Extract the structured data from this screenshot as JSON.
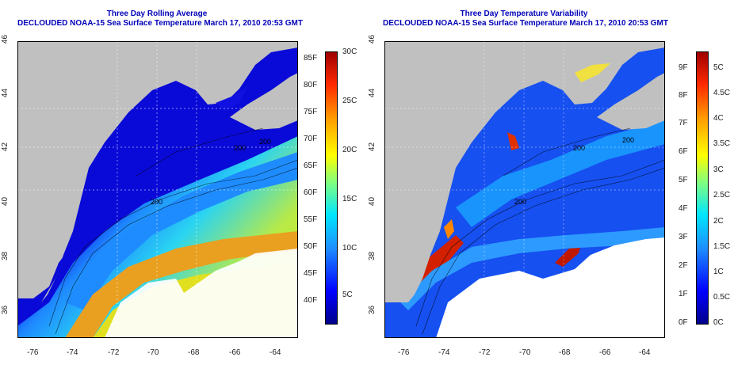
{
  "panels": [
    {
      "title": "Three Day Rolling Average",
      "subtitle": "DECLOUDED NOAA-15 Sea Surface Temperature March 17, 2010 20:53 GMT",
      "x_ticks": [
        "-76",
        "-74",
        "-72",
        "-70",
        "-68",
        "-66",
        "-64"
      ],
      "y_ticks": [
        "36",
        "38",
        "40",
        "42",
        "44",
        "46"
      ],
      "contour_labels": [
        "200",
        "200",
        "200"
      ],
      "colorbar": {
        "f_labels": [
          "85F",
          "80F",
          "75F",
          "70F",
          "65F",
          "60F",
          "55F",
          "50F",
          "45F",
          "40F"
        ],
        "c_labels": [
          "30C",
          "25C",
          "20C",
          "15C",
          "10C",
          "5C"
        ],
        "stops": [
          "#00008a",
          "#0000ff",
          "#1e90ff",
          "#00e5ff",
          "#7fff7f",
          "#ffff00",
          "#ff9900",
          "#ff2a00",
          "#a00000"
        ]
      }
    },
    {
      "title": "Three Day Temperature Variability",
      "subtitle": "DECLOUDED NOAA-15 Sea Surface Temperature March 17, 2010 20:53 GMT",
      "x_ticks": [
        "-76",
        "-74",
        "-72",
        "-70",
        "-68",
        "-66",
        "-64"
      ],
      "y_ticks": [
        "36",
        "38",
        "40",
        "42",
        "44",
        "46"
      ],
      "contour_labels": [
        "200",
        "200",
        "200"
      ],
      "colorbar": {
        "f_labels": [
          "9F",
          "8F",
          "7F",
          "6F",
          "5F",
          "4F",
          "3F",
          "2F",
          "1F",
          "0F"
        ],
        "c_labels": [
          "5C",
          "4.5C",
          "4C",
          "3.5C",
          "3C",
          "2.5C",
          "2C",
          "1.5C",
          "1C",
          "0.5C",
          "0C"
        ],
        "stops": [
          "#00008a",
          "#0000ff",
          "#1e90ff",
          "#00e5ff",
          "#7fff7f",
          "#ffff00",
          "#ff9900",
          "#ff2a00",
          "#a00000"
        ]
      }
    }
  ],
  "colors": {
    "land": "#c0c0c0",
    "title": "#0000b8",
    "deep_blue": "#0a0ad8",
    "cloud": "#ffffff"
  }
}
